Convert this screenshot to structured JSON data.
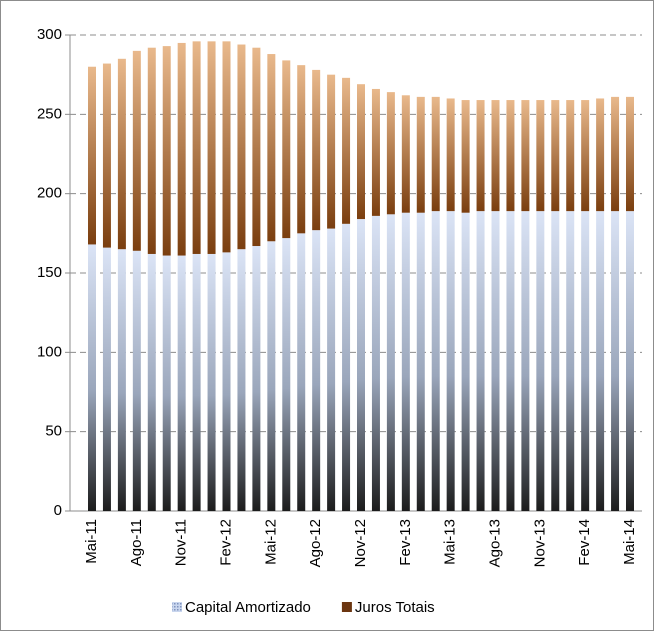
{
  "chart_data": {
    "type": "stacked_bar",
    "categories": [
      "Mai-11",
      null,
      null,
      "Ago-11",
      null,
      null,
      "Nov-11",
      null,
      null,
      "Fev-12",
      null,
      null,
      "Mai-12",
      null,
      null,
      "Ago-12",
      null,
      null,
      "Nov-12",
      null,
      null,
      "Fev-13",
      null,
      null,
      "Mai-13",
      null,
      null,
      "Ago-13",
      null,
      null,
      "Nov-13",
      null,
      null,
      "Fev-14",
      null,
      null,
      "Mai-14"
    ],
    "series": [
      {
        "name": "Capital Amortizado",
        "color": "#c9d6ee",
        "values": [
          168,
          166,
          165,
          164,
          162,
          161,
          161,
          162,
          162,
          163,
          165,
          167,
          170,
          172,
          175,
          177,
          178,
          181,
          184,
          186,
          187,
          188,
          188,
          189,
          189,
          188,
          189,
          189,
          189,
          189,
          189,
          189,
          189,
          189,
          189,
          189,
          189
        ]
      },
      {
        "name": "Juros Totais",
        "color": "#6b3510",
        "values": [
          112,
          116,
          120,
          126,
          130,
          132,
          134,
          134,
          134,
          133,
          129,
          125,
          118,
          112,
          106,
          101,
          97,
          92,
          85,
          80,
          77,
          74,
          73,
          72,
          71,
          71,
          70,
          70,
          70,
          70,
          70,
          70,
          70,
          70,
          71,
          72,
          72
        ]
      }
    ],
    "ylim": [
      0,
      300
    ],
    "yticks": [
      0,
      50,
      100,
      150,
      200,
      250,
      300
    ],
    "grid": true,
    "legend": "bottom"
  }
}
